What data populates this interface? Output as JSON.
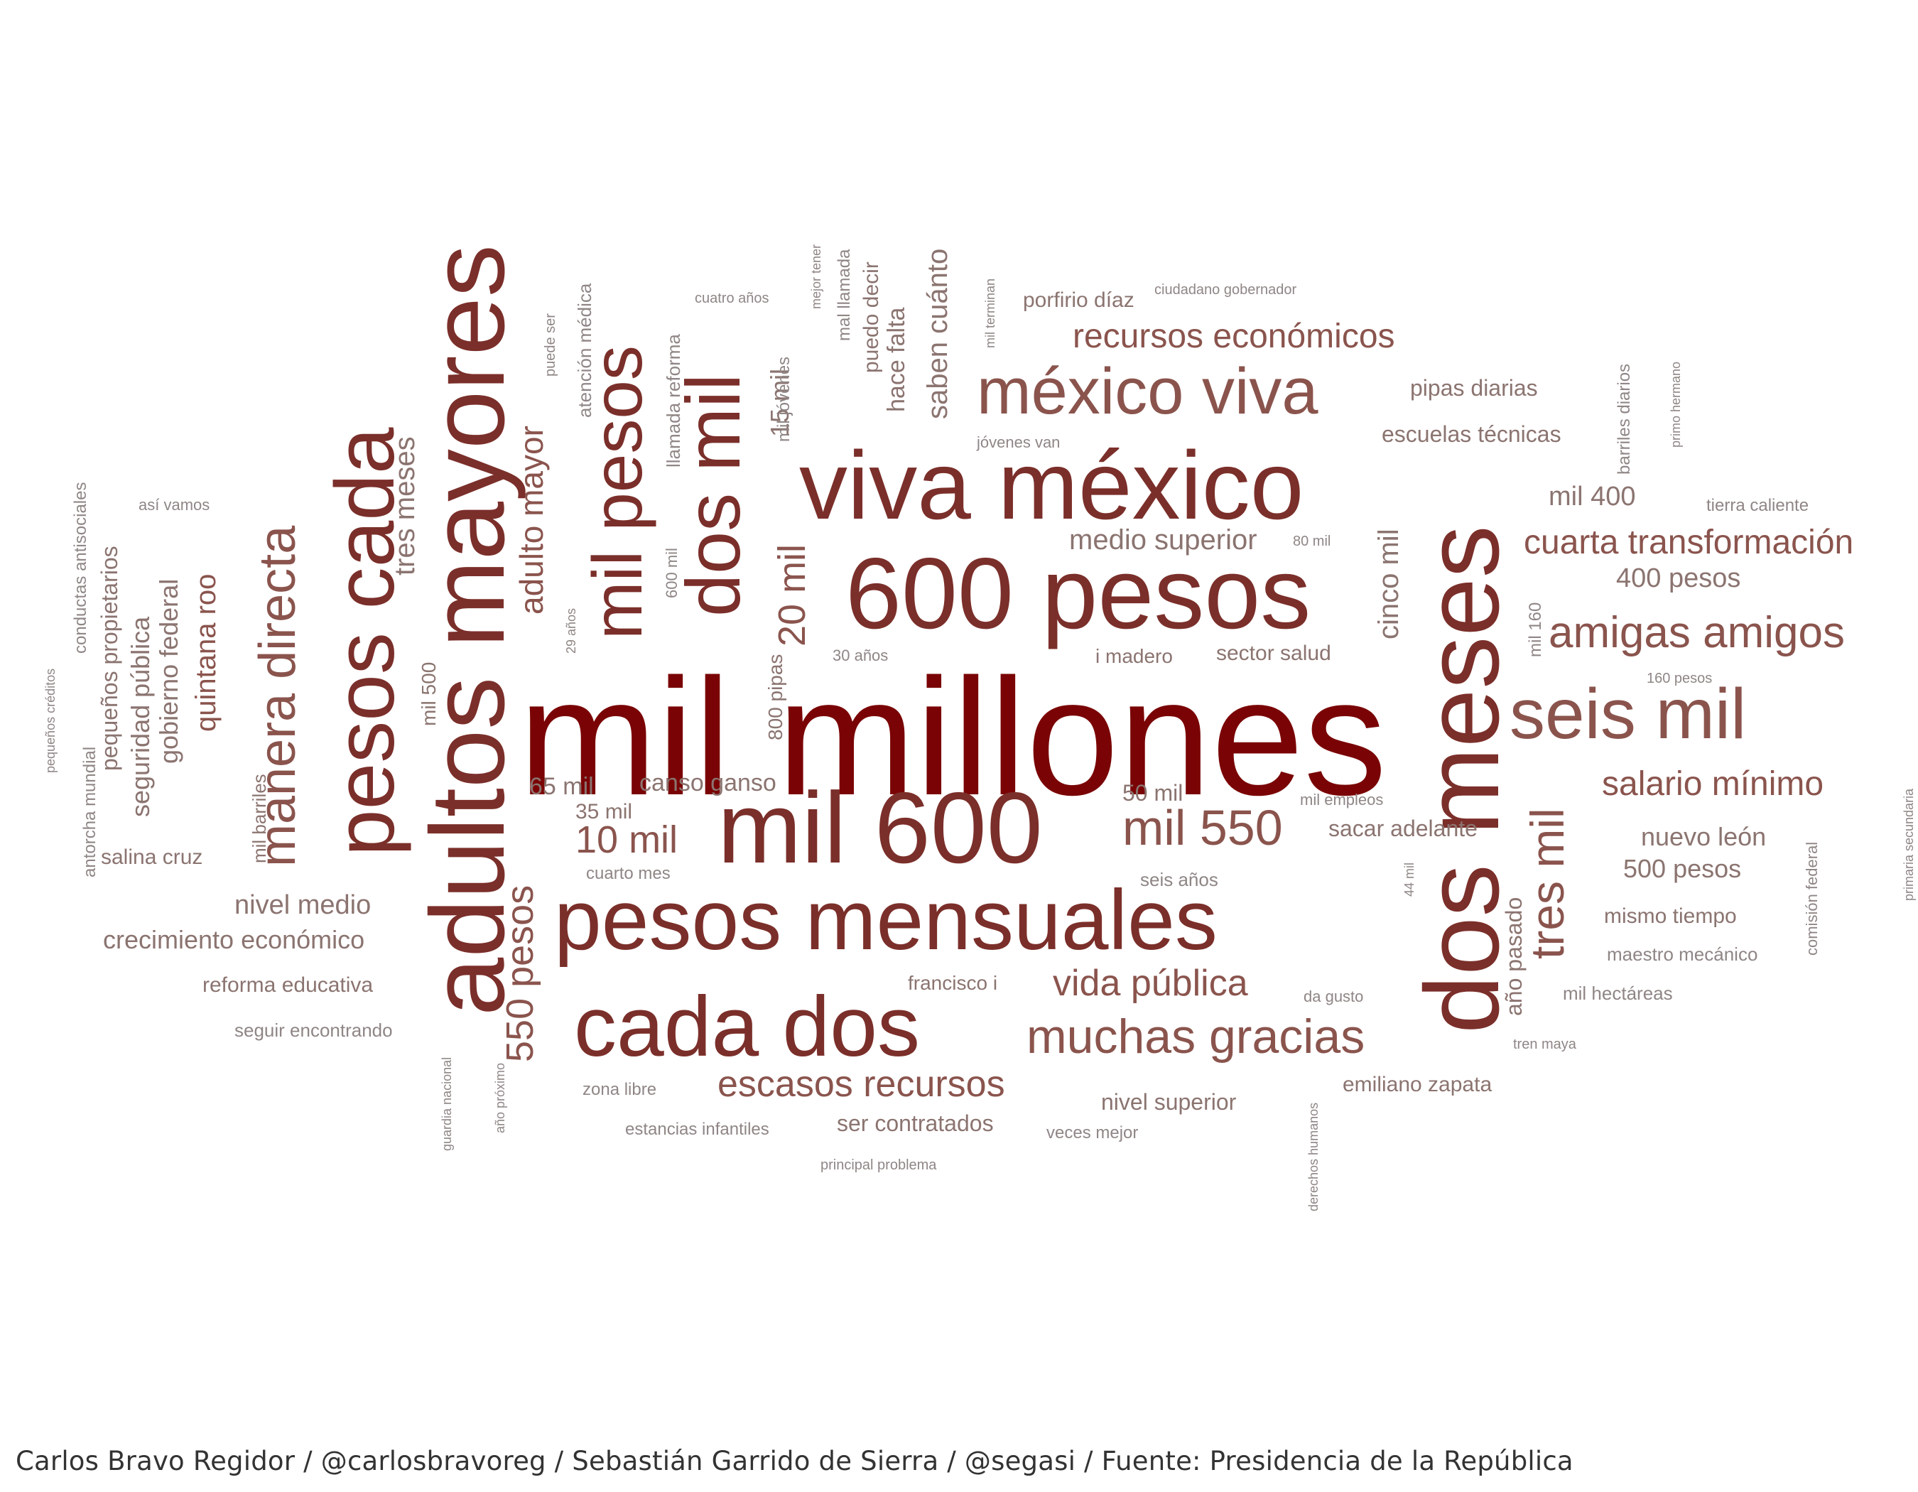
{
  "colors": {
    "top": "#7a0405",
    "strong": "#7b2f2a",
    "medium": "#8a544d",
    "light": "#8b7470",
    "faint": "#8f8685"
  },
  "caption": "Carlos Bravo Regidor / @carlosbravoreg / Sebastián Garrido de Sierra / @segasi / Fuente: Presidencia de la República",
  "words": [
    {
      "text": "mil millones",
      "tier": "top"
    },
    {
      "text": "adultos mayores",
      "tier": "strong"
    },
    {
      "text": "dos meses",
      "tier": "strong"
    },
    {
      "text": "viva méxico",
      "tier": "strong"
    },
    {
      "text": "600 pesos",
      "tier": "strong"
    },
    {
      "text": "pesos mensuales",
      "tier": "strong"
    },
    {
      "text": "mil 600",
      "tier": "strong"
    },
    {
      "text": "cada dos",
      "tier": "strong"
    },
    {
      "text": "pesos cada",
      "tier": "strong"
    },
    {
      "text": "dos mil",
      "tier": "strong"
    },
    {
      "text": "mil pesos",
      "tier": "strong"
    },
    {
      "text": "méxico viva",
      "tier": "medium"
    },
    {
      "text": "seis mil",
      "tier": "medium"
    },
    {
      "text": "manera directa",
      "tier": "medium"
    },
    {
      "text": "muchas gracias",
      "tier": "medium"
    },
    {
      "text": "amigas amigos",
      "tier": "medium"
    },
    {
      "text": "mil 550",
      "tier": "medium"
    },
    {
      "text": "tres mil",
      "tier": "medium"
    },
    {
      "text": "escasos recursos",
      "tier": "medium"
    },
    {
      "text": "vida pública",
      "tier": "medium"
    },
    {
      "text": "550 pesos",
      "tier": "medium"
    },
    {
      "text": "cuarta transformación",
      "tier": "medium"
    },
    {
      "text": "recursos económicos",
      "tier": "medium"
    },
    {
      "text": "salario mínimo",
      "tier": "medium"
    },
    {
      "text": "10 mil",
      "tier": "medium"
    },
    {
      "text": "adulto mayor",
      "tier": "medium"
    },
    {
      "text": "20 mil",
      "tier": "medium"
    },
    {
      "text": "quintana roo",
      "tier": "medium"
    },
    {
      "text": "medio superior",
      "tier": "light"
    },
    {
      "text": "cinco mil",
      "tier": "light"
    },
    {
      "text": "tres meses",
      "tier": "light"
    },
    {
      "text": "saben cuánto",
      "tier": "light"
    },
    {
      "text": "crecimiento económico",
      "tier": "light"
    },
    {
      "text": "nivel medio",
      "tier": "light"
    },
    {
      "text": "gobierno federal",
      "tier": "light"
    },
    {
      "text": "seguridad pública",
      "tier": "light"
    },
    {
      "text": "pequeños propietarios",
      "tier": "light"
    },
    {
      "text": "mil 400",
      "tier": "light"
    },
    {
      "text": "400 pesos",
      "tier": "light"
    },
    {
      "text": "nuevo león",
      "tier": "light"
    },
    {
      "text": "500 pesos",
      "tier": "light"
    },
    {
      "text": "año pasado",
      "tier": "light"
    },
    {
      "text": "escuelas técnicas",
      "tier": "light"
    },
    {
      "text": "pipas diarias",
      "tier": "light"
    },
    {
      "text": "15 mil",
      "tier": "light"
    },
    {
      "text": "hace falta",
      "tier": "light"
    },
    {
      "text": "canso ganso",
      "tier": "light"
    },
    {
      "text": "65 mil",
      "tier": "light"
    },
    {
      "text": "sacar adelante",
      "tier": "light"
    },
    {
      "text": "sector salud",
      "tier": "light"
    },
    {
      "text": "reforma educativa",
      "tier": "light"
    },
    {
      "text": "nivel superior",
      "tier": "light"
    },
    {
      "text": "ser contratados",
      "tier": "light"
    },
    {
      "text": "emiliano zapata",
      "tier": "light"
    },
    {
      "text": "mismo tiempo",
      "tier": "light"
    },
    {
      "text": "50 mil",
      "tier": "light"
    },
    {
      "text": "35 mil",
      "tier": "light"
    },
    {
      "text": "puedo decir",
      "tier": "light"
    },
    {
      "text": "porfirio díaz",
      "tier": "light"
    },
    {
      "text": "i madero",
      "tier": "light"
    },
    {
      "text": "francisco i",
      "tier": "light"
    },
    {
      "text": "mil 500",
      "tier": "light"
    },
    {
      "text": "mil barriles",
      "tier": "light"
    },
    {
      "text": "salina cruz",
      "tier": "light"
    },
    {
      "text": "800 pipas",
      "tier": "light"
    },
    {
      "text": "mal llamada",
      "tier": "faint"
    },
    {
      "text": "atención médica",
      "tier": "faint"
    },
    {
      "text": "llamada reforma",
      "tier": "faint"
    },
    {
      "text": "mil jóvenes",
      "tier": "faint"
    },
    {
      "text": "mil 160",
      "tier": "faint"
    },
    {
      "text": "barriles diarios",
      "tier": "faint"
    },
    {
      "text": "seis años",
      "tier": "faint"
    },
    {
      "text": "seguir encontrando",
      "tier": "faint"
    },
    {
      "text": "antorcha mundial",
      "tier": "faint"
    },
    {
      "text": "conductas antisociales",
      "tier": "faint"
    },
    {
      "text": "comisión federal",
      "tier": "faint"
    },
    {
      "text": "maestro mecánico",
      "tier": "faint"
    },
    {
      "text": "mil hectáreas",
      "tier": "faint"
    },
    {
      "text": "cuarto mes",
      "tier": "faint"
    },
    {
      "text": "zona libre",
      "tier": "faint"
    },
    {
      "text": "estancias infantiles",
      "tier": "faint"
    },
    {
      "text": "veces mejor",
      "tier": "faint"
    },
    {
      "text": "tierra caliente",
      "tier": "faint"
    },
    {
      "text": "jóvenes van",
      "tier": "faint"
    },
    {
      "text": "así vamos",
      "tier": "faint"
    },
    {
      "text": "600 mil",
      "tier": "faint"
    },
    {
      "text": "puede ser",
      "tier": "faint"
    },
    {
      "text": "mil empleos",
      "tier": "faint"
    },
    {
      "text": "30 años",
      "tier": "faint"
    },
    {
      "text": "cuatro años",
      "tier": "faint"
    },
    {
      "text": "ciudadano gobernador",
      "tier": "faint"
    },
    {
      "text": "mil terminan",
      "tier": "faint"
    },
    {
      "text": "mejor tener",
      "tier": "faint"
    },
    {
      "text": "primo hermano",
      "tier": "faint"
    },
    {
      "text": "80 mil",
      "tier": "faint"
    },
    {
      "text": "160 pesos",
      "tier": "faint"
    },
    {
      "text": "29 años",
      "tier": "faint"
    },
    {
      "text": "44 mil",
      "tier": "faint"
    },
    {
      "text": "da gusto",
      "tier": "faint"
    },
    {
      "text": "tren maya",
      "tier": "faint"
    },
    {
      "text": "guardia nacional",
      "tier": "faint"
    },
    {
      "text": "año próximo",
      "tier": "faint"
    },
    {
      "text": "derechos humanos",
      "tier": "faint"
    },
    {
      "text": "pequeños créditos",
      "tier": "faint"
    },
    {
      "text": "primaria secundaria",
      "tier": "faint"
    },
    {
      "text": "principal problema",
      "tier": "faint"
    }
  ]
}
